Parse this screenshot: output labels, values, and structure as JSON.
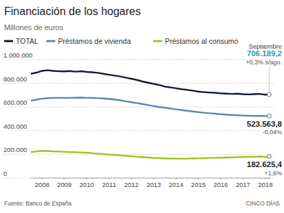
{
  "chart_data": {
    "type": "line",
    "title": "Financiación de los hogares",
    "subtitle": "Millones de euros",
    "annotation": "Septiembre",
    "source": "Fuente: Banco de España",
    "credit": "CINCO DÍAS",
    "x": [
      2008,
      2008.25,
      2008.5,
      2008.75,
      2009,
      2009.25,
      2009.5,
      2009.75,
      2010,
      2010.25,
      2010.5,
      2010.75,
      2011,
      2011.25,
      2011.5,
      2011.75,
      2012,
      2012.25,
      2012.5,
      2012.75,
      2013,
      2013.25,
      2013.5,
      2013.75,
      2014,
      2014.25,
      2014.5,
      2014.75,
      2015,
      2015.25,
      2015.5,
      2015.75,
      2016,
      2016.25,
      2016.5,
      2016.75,
      2017,
      2017.25,
      2017.5,
      2017.75,
      2018,
      2018.25,
      2018.5,
      2018.67
    ],
    "xlim": [
      2008,
      2018.75
    ],
    "xticks": [
      {
        "value": 2008.5,
        "label": "2008"
      },
      {
        "value": 2009.5,
        "label": "2009"
      },
      {
        "value": 2010.5,
        "label": "2010"
      },
      {
        "value": 2011.5,
        "label": "2011"
      },
      {
        "value": 2012.5,
        "label": "2012"
      },
      {
        "value": 2013.5,
        "label": "2013"
      },
      {
        "value": 2014.5,
        "label": "2014"
      },
      {
        "value": 2015.5,
        "label": "2015"
      },
      {
        "value": 2016.5,
        "label": "2016"
      },
      {
        "value": 2017.5,
        "label": "2017"
      },
      {
        "value": 2018.5,
        "label": "2018"
      }
    ],
    "ylim": [
      0,
      1000000
    ],
    "yticks": [
      0,
      {
        "value": 200000,
        "label": "200.000"
      },
      {
        "value": 400000,
        "label": "400.000"
      },
      {
        "value": 600000,
        "label": "600.000"
      },
      {
        "value": 800000,
        "label": "800.000"
      },
      {
        "value": 1000000,
        "label": "1.000.000"
      }
    ],
    "grid": true,
    "legend": "top",
    "series": [
      {
        "name": "TOTAL",
        "color": "#0e1c30",
        "end_label": "706.189,2",
        "end_change": "+0,3% s/ago.",
        "values": [
          880000,
          890000,
          905000,
          910000,
          905000,
          902000,
          900000,
          903000,
          898000,
          902000,
          896000,
          893000,
          888000,
          880000,
          872000,
          865000,
          858000,
          848000,
          838000,
          828000,
          815000,
          805000,
          795000,
          785000,
          772000,
          765000,
          758000,
          750000,
          745000,
          738000,
          730000,
          725000,
          722000,
          720000,
          715000,
          712000,
          710000,
          712000,
          708000,
          706000,
          708000,
          710000,
          704000,
          706189.2
        ]
      },
      {
        "name": "Préstamos de vivienda",
        "color": "#5b87a8",
        "end_label": "523.563,8",
        "end_change": "-0,04%",
        "values": [
          652000,
          662000,
          670000,
          675000,
          677000,
          677000,
          676000,
          677000,
          678000,
          679000,
          677000,
          676000,
          674000,
          672000,
          668000,
          663000,
          656000,
          648000,
          640000,
          632000,
          624000,
          616000,
          608000,
          600000,
          594000,
          587000,
          580000,
          574000,
          568000,
          562000,
          556000,
          551000,
          547000,
          543000,
          539000,
          535000,
          532000,
          530000,
          528000,
          526000,
          525000,
          524500,
          524000,
          523563.8
        ]
      },
      {
        "name": "Préstamos al consumo",
        "color": "#9cc41e",
        "end_label": "182.625,4",
        "end_change": "+1,6%",
        "values": [
          220000,
          225000,
          230000,
          228000,
          225000,
          223000,
          222000,
          220000,
          218000,
          216000,
          214000,
          210000,
          206000,
          202000,
          198000,
          195000,
          192000,
          188000,
          184000,
          180000,
          176000,
          173000,
          170000,
          168000,
          166000,
          165000,
          165000,
          164000,
          164000,
          166000,
          167000,
          168000,
          170000,
          171000,
          172000,
          173000,
          175000,
          177000,
          178000,
          179000,
          180000,
          182000,
          178000,
          182625.4
        ]
      }
    ]
  }
}
